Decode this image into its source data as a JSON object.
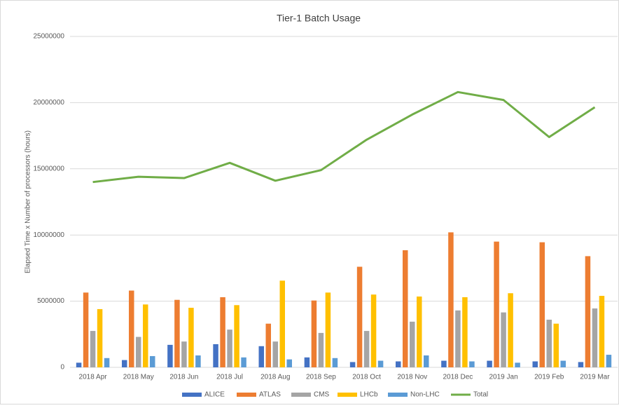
{
  "chart_data": {
    "type": "bar",
    "title": "Tier-1 Batch Usage",
    "ylabel": "Elapsed Time x Number of processors (hours)",
    "categories": [
      "2018 Apr",
      "2018 May",
      "2018 Jun",
      "2018 Jul",
      "2018 Aug",
      "2018 Sep",
      "2018 Oct",
      "2018 Nov",
      "2018 Dec",
      "2019 Jan",
      "2019 Feb",
      "2019 Mar"
    ],
    "series": [
      {
        "name": "ALICE",
        "color": "#4472c4",
        "values": [
          350000,
          550000,
          1700000,
          1750000,
          1600000,
          750000,
          400000,
          450000,
          500000,
          500000,
          450000,
          400000
        ]
      },
      {
        "name": "ATLAS",
        "color": "#ed7d31",
        "values": [
          5650000,
          5800000,
          5100000,
          5300000,
          3300000,
          5050000,
          7600000,
          8850000,
          10200000,
          9500000,
          9450000,
          8400000
        ]
      },
      {
        "name": "CMS",
        "color": "#a5a5a5",
        "values": [
          2750000,
          2300000,
          1950000,
          2850000,
          1950000,
          2600000,
          2750000,
          3450000,
          4300000,
          4150000,
          3600000,
          4450000
        ]
      },
      {
        "name": "LHCb",
        "color": "#ffc000",
        "values": [
          4400000,
          4750000,
          4500000,
          4700000,
          6550000,
          5650000,
          5500000,
          5350000,
          5300000,
          5600000,
          3300000,
          5400000
        ]
      },
      {
        "name": "Non-LHC",
        "color": "#5b9bd5",
        "values": [
          700000,
          850000,
          900000,
          750000,
          600000,
          700000,
          500000,
          900000,
          450000,
          350000,
          500000,
          950000
        ]
      },
      {
        "name": "Total",
        "color": "#70ad47",
        "type": "line",
        "values": [
          14000000,
          14400000,
          14300000,
          15450000,
          14100000,
          14900000,
          17200000,
          19100000,
          20800000,
          20200000,
          17400000,
          19650000
        ]
      }
    ],
    "ylim": [
      0,
      25000000
    ],
    "yticks": [
      0,
      5000000,
      10000000,
      15000000,
      20000000,
      25000000
    ],
    "grid": true
  }
}
